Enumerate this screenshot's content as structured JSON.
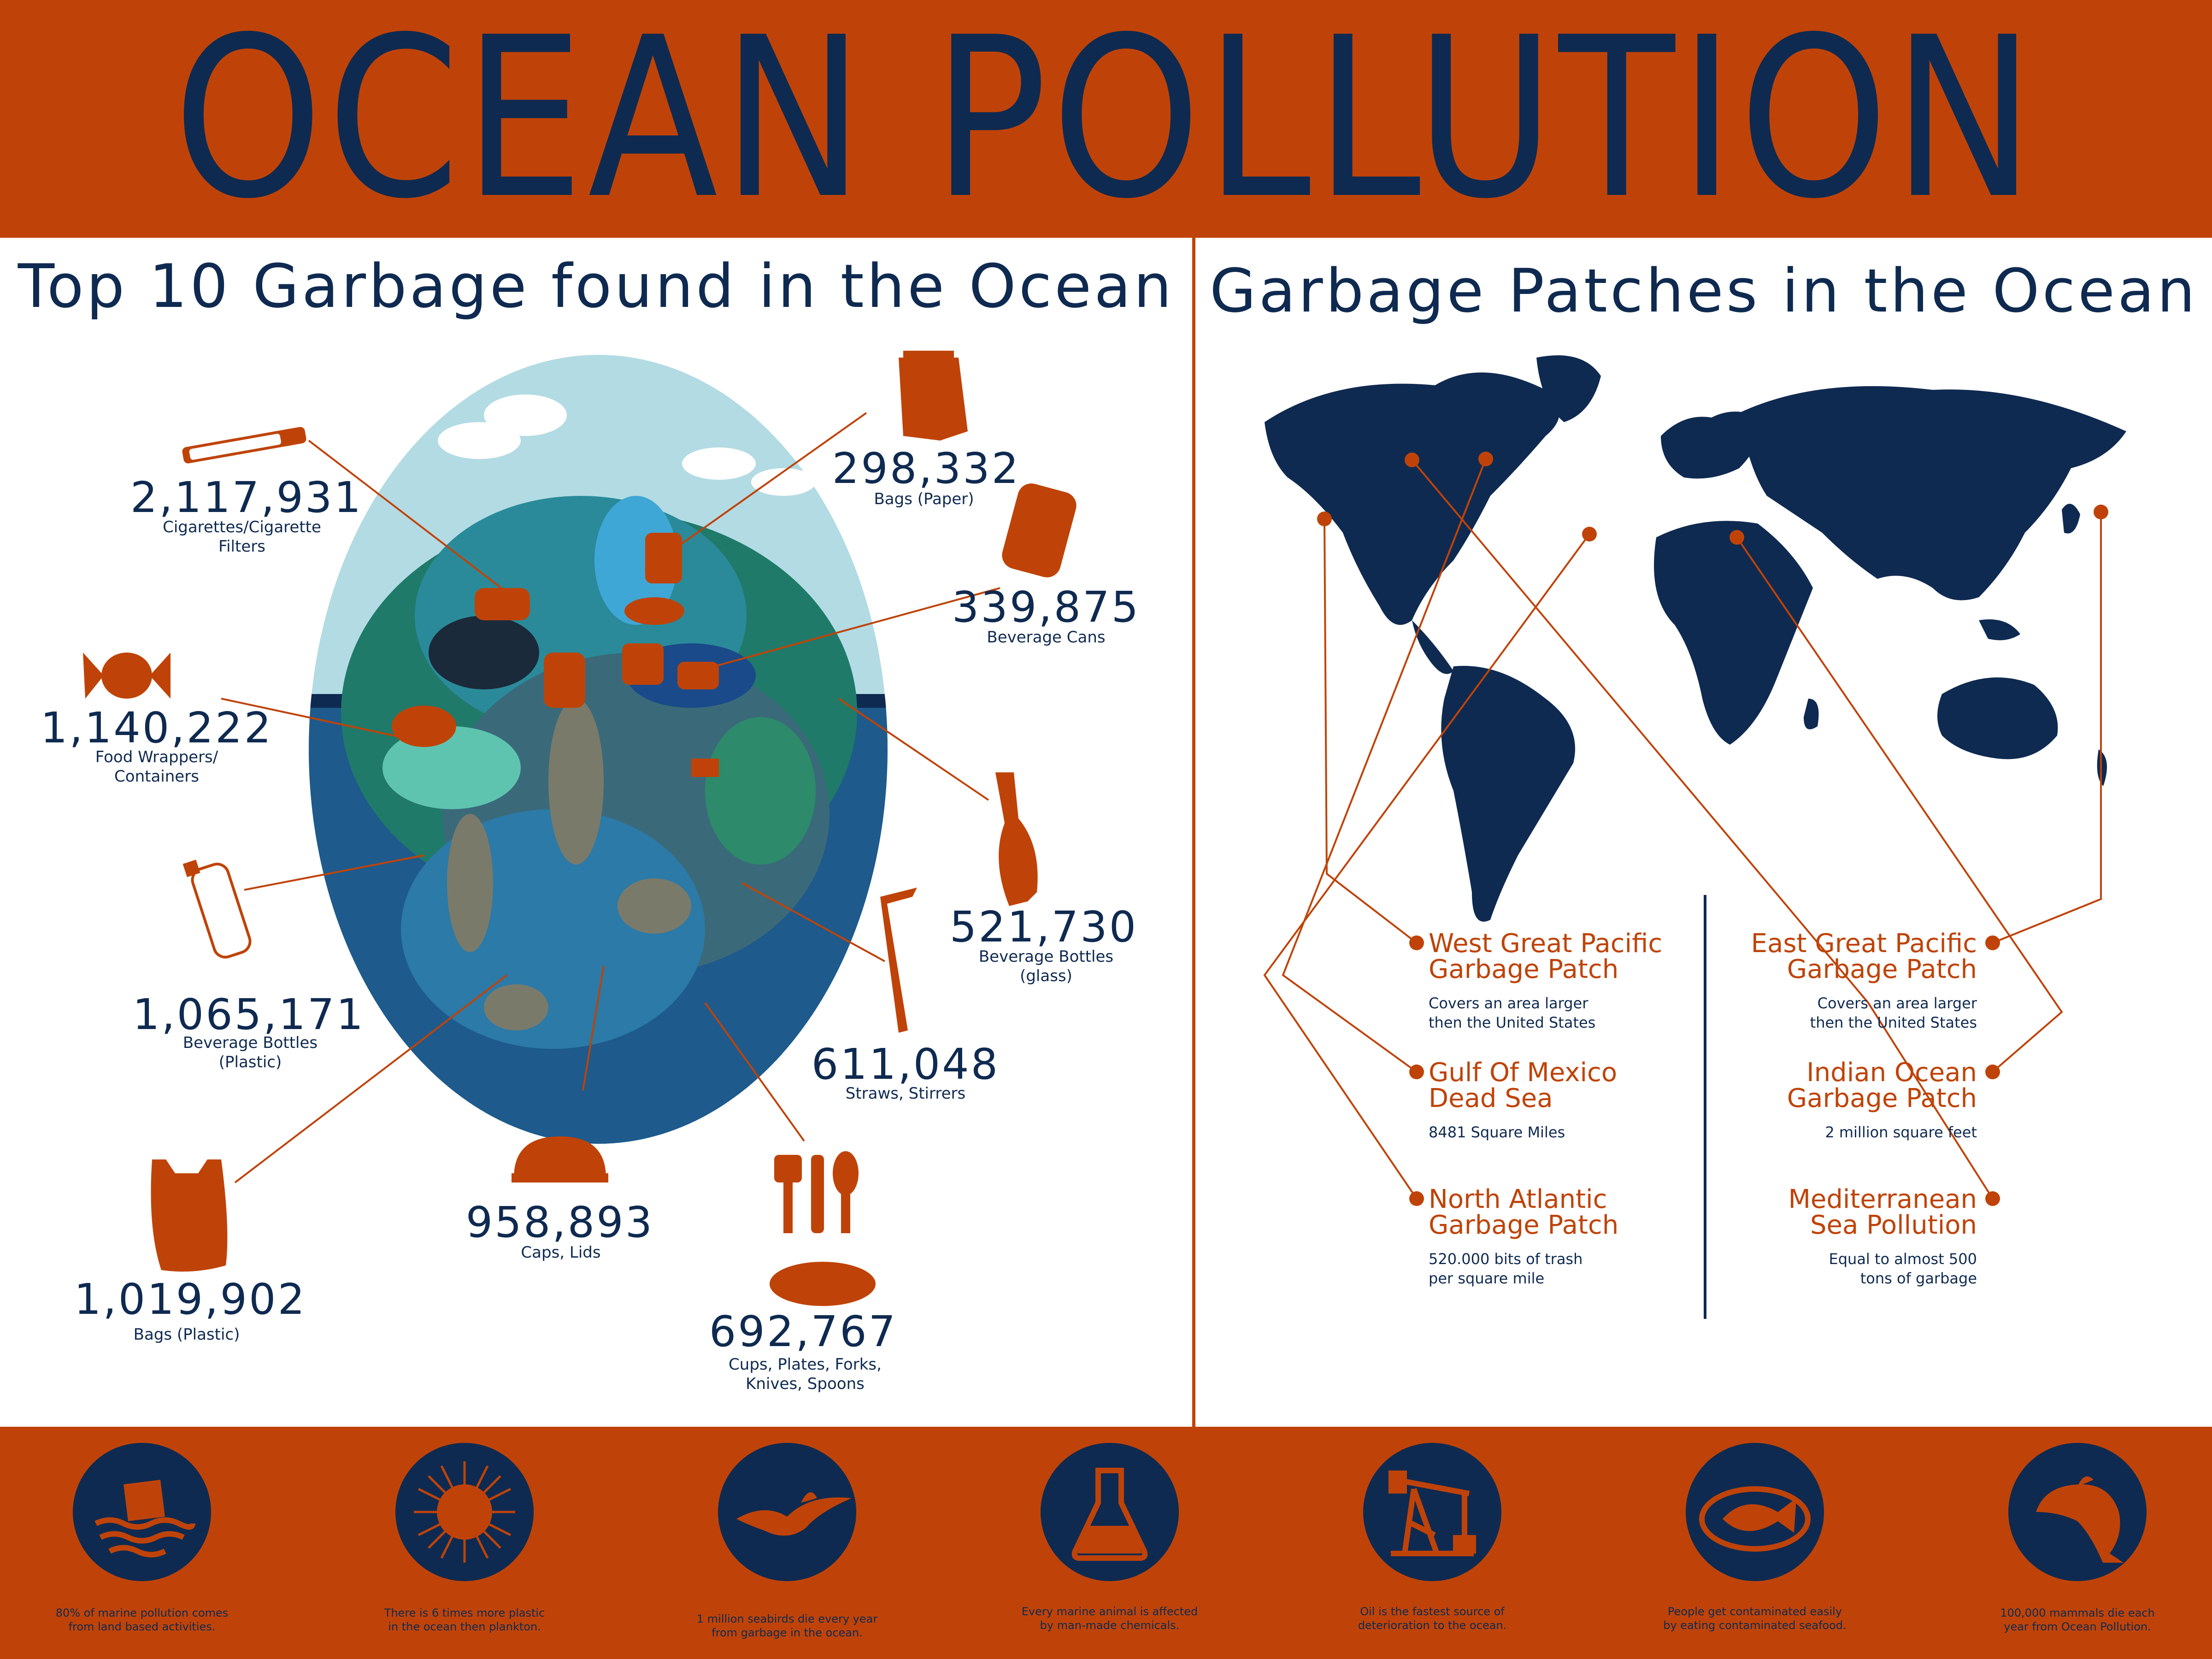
{
  "title": "OCEAN POLLUTION",
  "colors": {
    "accent": "#bf4308",
    "navy": "#0f2a50",
    "sky": "#b3dbe3",
    "sea": "#1e5a8c"
  },
  "left_section": {
    "title": "Top 10 Garbage found in the Ocean",
    "items": [
      {
        "value": "2,117,931",
        "label": "Cigarettes/Cigarette\nFilters",
        "icon": "cigarette-icon"
      },
      {
        "value": "298,332",
        "label": "Bags (Paper)",
        "icon": "paper-bag-icon"
      },
      {
        "value": "339,875",
        "label": "Beverage Cans",
        "icon": "can-icon"
      },
      {
        "value": "1,140,222",
        "label": "Food Wrappers/\nContainers",
        "icon": "candy-wrapper-icon"
      },
      {
        "value": "521,730",
        "label": "Beverage Bottles\n(glass)",
        "icon": "glass-bottle-icon"
      },
      {
        "value": "1,065,171",
        "label": "Beverage Bottles\n(Plastic)",
        "icon": "plastic-bottle-icon"
      },
      {
        "value": "611,048",
        "label": "Straws, Stirrers",
        "icon": "straw-icon"
      },
      {
        "value": "958,893",
        "label": "Caps, Lids",
        "icon": "bottle-cap-icon"
      },
      {
        "value": "1,019,902",
        "label": "Bags (Plastic)",
        "icon": "plastic-bag-icon"
      },
      {
        "value": "692,767",
        "label": "Cups, Plates, Forks,\nKnives, Spoons",
        "icon": "cutlery-icon"
      }
    ]
  },
  "right_section": {
    "title": "Garbage Patches in the Ocean",
    "left_patches": [
      {
        "name": "West Great Pacific\nGarbage Patch",
        "desc": "Covers an area larger\nthen the United States"
      },
      {
        "name": "Gulf Of Mexico\nDead Sea",
        "desc": "8481 Square Miles"
      },
      {
        "name": "North Atlantic\nGarbage Patch",
        "desc": "520.000 bits of trash\nper square mile"
      }
    ],
    "right_patches": [
      {
        "name": "East Great Pacific\nGarbage Patch",
        "desc": "Covers an area larger\nthen the United States"
      },
      {
        "name": "Indian Ocean\nGarbage Patch",
        "desc": "2 million square feet"
      },
      {
        "name": "Mediterranean\nSea Pollution",
        "desc": "Equal to almost 500\ntons of garbage"
      }
    ]
  },
  "footer_facts": [
    {
      "text": "80% of marine pollution comes\nfrom land based activities.",
      "icon": "sinking-trash-icon"
    },
    {
      "text": "There is 6 times more plastic\nin the ocean then plankton.",
      "icon": "plankton-icon"
    },
    {
      "text": "1 million seabirds die every year\nfrom garbage in the ocean.",
      "icon": "seabird-icon"
    },
    {
      "text": "Every marine animal is affected\nby man-made chemicals.",
      "icon": "flask-icon"
    },
    {
      "text": "Oil is the fastest source of\ndeterioration to the ocean.",
      "icon": "oil-pump-icon"
    },
    {
      "text": "People get contaminated easily\nby eating contaminated seafood.",
      "icon": "fish-plate-icon"
    },
    {
      "text": "100,000 mammals die each\nyear from Ocean Pollution.",
      "icon": "dolphin-icon"
    }
  ]
}
